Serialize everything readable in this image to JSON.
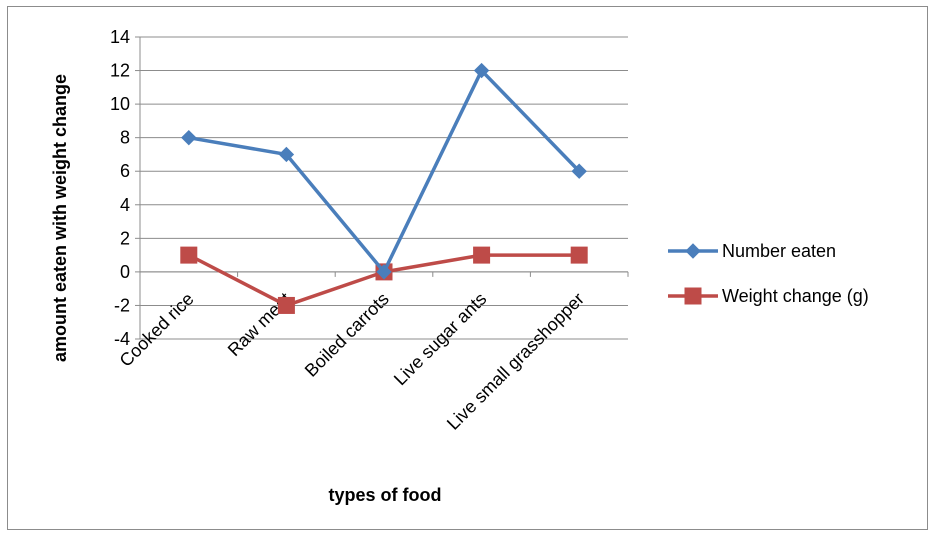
{
  "chart_data": {
    "type": "line",
    "categories": [
      "Cooked rice",
      "Raw meat",
      "Boiled carrots",
      "Live sugar ants",
      "Live small grasshopper"
    ],
    "series": [
      {
        "name": "Number eaten",
        "values": [
          8,
          7,
          0,
          12,
          6
        ],
        "color": "#4a7ebb",
        "marker": "diamond"
      },
      {
        "name": "Weight change (g)",
        "values": [
          1,
          -2,
          0,
          1,
          1
        ],
        "color": "#be4b48",
        "marker": "square"
      }
    ],
    "title": "",
    "xlabel": "types of food",
    "ylabel": "amount eaten with weight change",
    "ylim": [
      -4,
      14
    ],
    "yticks": [
      -4,
      -2,
      0,
      2,
      4,
      6,
      8,
      10,
      12,
      14
    ],
    "grid": true,
    "legend_position": "right"
  }
}
